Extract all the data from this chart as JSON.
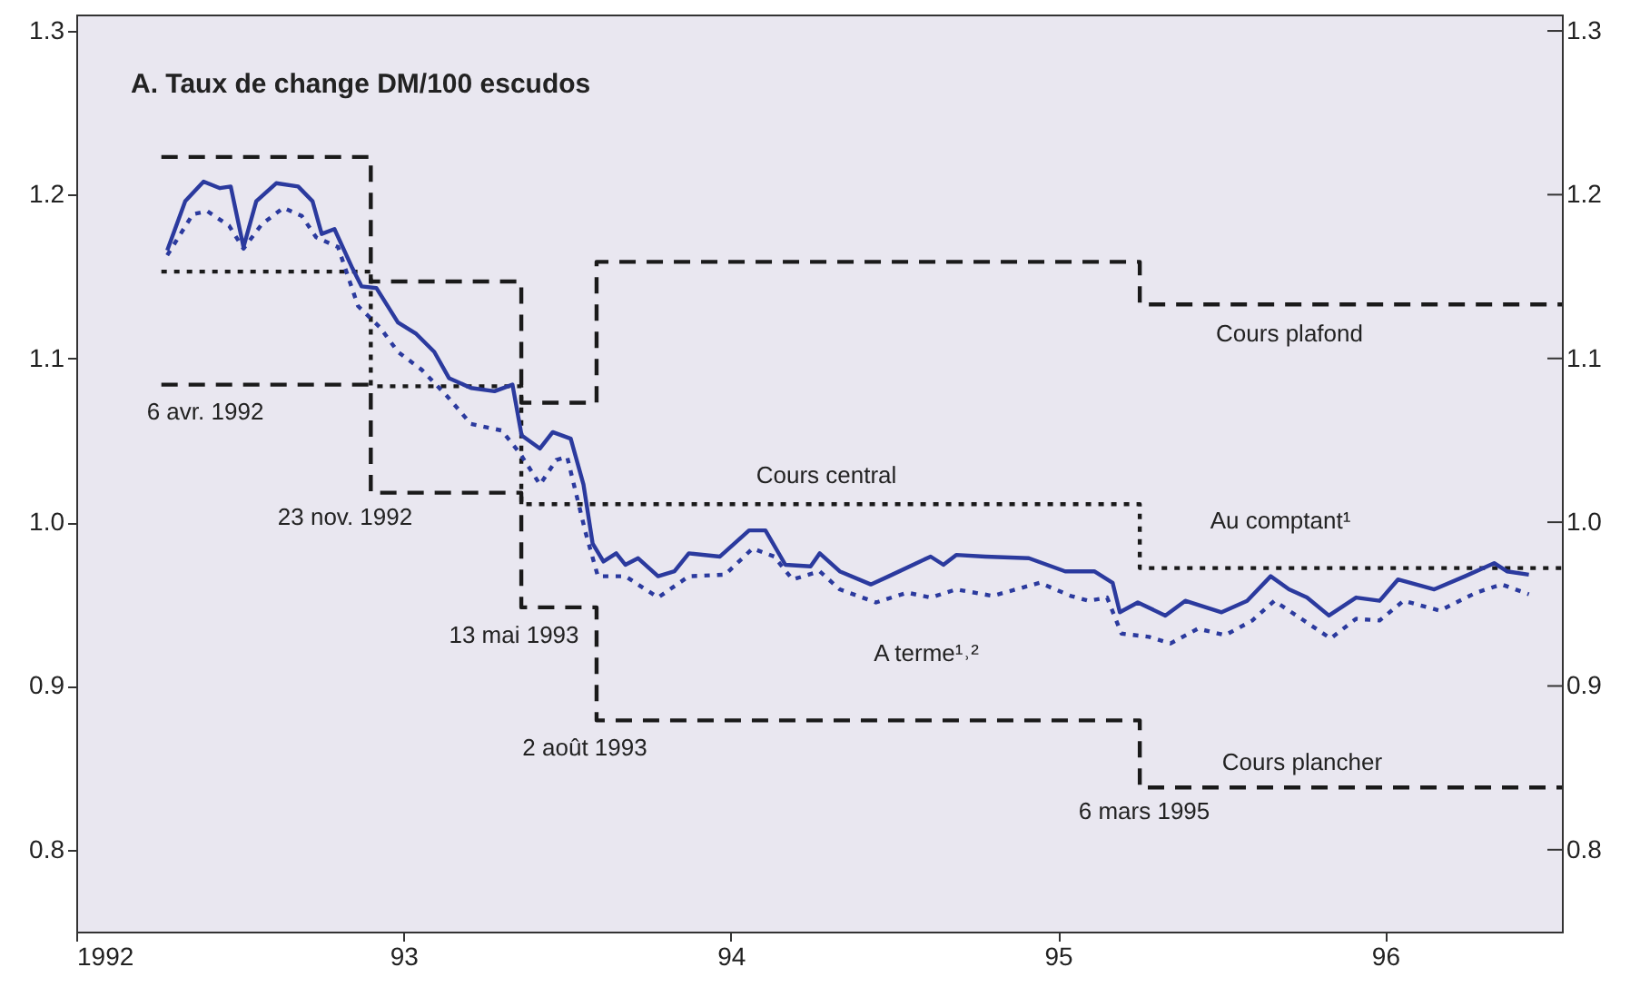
{
  "chart_data": {
    "type": "line",
    "title": "A. Taux de change DM/100 escudos",
    "xlim": [
      1992,
      1996.54
    ],
    "xticks": [
      {
        "value": 1992,
        "label": "1992"
      },
      {
        "value": 1993,
        "label": "93"
      },
      {
        "value": 1994,
        "label": "94"
      },
      {
        "value": 1995,
        "label": "95"
      },
      {
        "value": 1996,
        "label": "96"
      }
    ],
    "ylim": [
      0.75,
      1.31
    ],
    "yticks": [
      {
        "value": 0.8,
        "label": "0.8"
      },
      {
        "value": 0.9,
        "label": "0.9"
      },
      {
        "value": 1.0,
        "label": "1.0"
      },
      {
        "value": 1.1,
        "label": "1.1"
      },
      {
        "value": 1.2,
        "label": "1.2"
      },
      {
        "value": 1.3,
        "label": "1.3"
      }
    ],
    "y2lim": [
      0.75,
      1.31
    ],
    "y2ticks": [
      {
        "value": 0.8,
        "label": "0.8"
      },
      {
        "value": 0.9,
        "label": "0.9"
      },
      {
        "value": 1.0,
        "label": "1.0"
      },
      {
        "value": 1.1,
        "label": "1.1"
      },
      {
        "value": 1.2,
        "label": "1.2"
      },
      {
        "value": 1.3,
        "label": "1.3"
      }
    ],
    "grid": false,
    "series": [
      {
        "type": "step",
        "color": "#1a1a1a",
        "line_style": "dashed",
        "x": [
          1992.26,
          1992.9,
          1993.36,
          1993.59,
          1995.25,
          1996.54
        ],
        "values": [
          1.223,
          1.147,
          1.073,
          1.159,
          1.133,
          1.133
        ]
      },
      {
        "type": "step",
        "color": "#1a1a1a",
        "line_style": "dotted",
        "x": [
          1992.26,
          1992.9,
          1993.36,
          1993.59,
          1995.25,
          1996.54
        ],
        "values": [
          1.153,
          1.083,
          1.011,
          1.011,
          0.972,
          0.972
        ]
      },
      {
        "type": "step",
        "color": "#1a1a1a",
        "line_style": "dashed",
        "x": [
          1992.26,
          1992.9,
          1993.36,
          1993.59,
          1995.25,
          1996.54
        ],
        "values": [
          1.084,
          1.018,
          0.948,
          0.879,
          0.838,
          0.838
        ]
      },
      {
        "color": "#2b3a9e",
        "line_style": "solid",
        "x": [
          1992.278,
          1992.333,
          1992.389,
          1992.439,
          1992.472,
          1992.511,
          1992.55,
          1992.611,
          1992.678,
          1992.722,
          1992.75,
          1992.789,
          1992.844,
          1992.872,
          1992.917,
          1992.983,
          1993.039,
          1993.094,
          1993.139,
          1993.206,
          1993.278,
          1993.333,
          1993.361,
          1993.417,
          1993.456,
          1993.511,
          1993.55,
          1993.578,
          1993.611,
          1993.65,
          1993.678,
          1993.717,
          1993.778,
          1993.828,
          1993.872,
          1993.967,
          1994.056,
          1994.106,
          1994.167,
          1994.244,
          1994.272,
          1994.333,
          1994.428,
          1994.483,
          1994.578,
          1994.611,
          1994.65,
          1994.689,
          1994.778,
          1994.911,
          1995.022,
          1995.111,
          1995.167,
          1995.189,
          1995.244,
          1995.328,
          1995.389,
          1995.5,
          1995.578,
          1995.65,
          1995.706,
          1995.761,
          1995.828,
          1995.911,
          1995.983,
          1996.039,
          1996.15,
          1996.244,
          1996.333,
          1996.372,
          1996.439
        ],
        "values": [
          1.166,
          1.196,
          1.208,
          1.204,
          1.205,
          1.168,
          1.196,
          1.207,
          1.205,
          1.196,
          1.176,
          1.179,
          1.155,
          1.144,
          1.143,
          1.122,
          1.115,
          1.104,
          1.088,
          1.082,
          1.08,
          1.084,
          1.053,
          1.045,
          1.055,
          1.051,
          1.023,
          0.987,
          0.976,
          0.981,
          0.974,
          0.978,
          0.967,
          0.97,
          0.981,
          0.979,
          0.995,
          0.995,
          0.974,
          0.973,
          0.981,
          0.97,
          0.962,
          0.967,
          0.976,
          0.979,
          0.974,
          0.98,
          0.979,
          0.978,
          0.97,
          0.97,
          0.963,
          0.945,
          0.951,
          0.943,
          0.952,
          0.945,
          0.952,
          0.967,
          0.959,
          0.954,
          0.943,
          0.954,
          0.952,
          0.965,
          0.959,
          0.967,
          0.975,
          0.97,
          0.968
        ]
      },
      {
        "color": "#2b3a9e",
        "line_style": "dotted",
        "x": [
          1992.278,
          1992.356,
          1992.4,
          1992.467,
          1992.511,
          1992.567,
          1992.633,
          1992.689,
          1992.733,
          1992.8,
          1992.861,
          1992.928,
          1992.983,
          1993.056,
          1993.133,
          1993.206,
          1993.3,
          1993.356,
          1993.417,
          1993.467,
          1993.5,
          1993.556,
          1993.594,
          1993.678,
          1993.778,
          1993.872,
          1993.983,
          1994.067,
          1994.133,
          1994.189,
          1994.272,
          1994.333,
          1994.444,
          1994.539,
          1994.611,
          1994.689,
          1994.8,
          1994.944,
          1995.039,
          1995.094,
          1995.15,
          1995.194,
          1995.278,
          1995.344,
          1995.428,
          1995.511,
          1995.594,
          1995.661,
          1995.744,
          1995.833,
          1995.911,
          1995.983,
          1996.056,
          1996.167,
          1996.278,
          1996.356,
          1996.439
        ],
        "values": [
          1.163,
          1.188,
          1.19,
          1.181,
          1.167,
          1.182,
          1.192,
          1.187,
          1.174,
          1.168,
          1.132,
          1.119,
          1.104,
          1.093,
          1.077,
          1.06,
          1.056,
          1.042,
          1.023,
          1.038,
          1.04,
          0.994,
          0.967,
          0.967,
          0.954,
          0.967,
          0.968,
          0.984,
          0.979,
          0.965,
          0.97,
          0.959,
          0.951,
          0.957,
          0.954,
          0.959,
          0.955,
          0.963,
          0.955,
          0.952,
          0.954,
          0.932,
          0.93,
          0.926,
          0.935,
          0.931,
          0.94,
          0.952,
          0.941,
          0.929,
          0.941,
          0.94,
          0.952,
          0.946,
          0.957,
          0.962,
          0.956
        ]
      }
    ],
    "annotations": [
      "Cours plafond",
      "Cours central",
      "Cours plancher",
      "Au comptant¹",
      "A terme¹˒²",
      "6 avr. 1992",
      "23 nov. 1992",
      "13 mai 1993",
      "2 août 1993",
      "6 mars 1995"
    ]
  }
}
